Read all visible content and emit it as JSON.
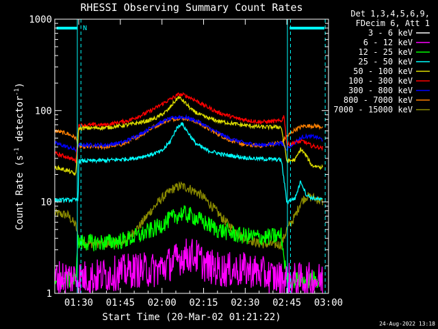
{
  "chart_data": {
    "type": "line",
    "title": "RHESSI Observing Summary Count Rates",
    "xlabel": "Start Time (20-Mar-02 01:21:22)",
    "ylabel_main": "Count Rate (s",
    "ylabel_sup1": "-1",
    "ylabel_mid": " detector",
    "ylabel_sup2": "-1",
    "ylabel_end": ")",
    "y_scale": "log",
    "ylim": [
      1,
      1000
    ],
    "xlim_minutes": [
      81.37,
      180.0
    ],
    "x_ticks": [
      {
        "t": 90,
        "label": "01:30"
      },
      {
        "t": 105,
        "label": "01:45"
      },
      {
        "t": 120,
        "label": "02:00"
      },
      {
        "t": 135,
        "label": "02:15"
      },
      {
        "t": 150,
        "label": "02:30"
      },
      {
        "t": 165,
        "label": "02:45"
      },
      {
        "t": 180,
        "label": "03:00"
      }
    ],
    "y_ticks": [
      {
        "v": 1,
        "label": "1"
      },
      {
        "v": 10,
        "label": "10"
      },
      {
        "v": 100,
        "label": "100"
      },
      {
        "v": 1000,
        "label": "1000"
      }
    ],
    "legend_header": [
      "Det 1,3,4,5,6,9,",
      "FDecim 6, Att 1"
    ],
    "legend_position": "right",
    "attenuator_flag": {
      "label": "N",
      "color": "#00ffff"
    },
    "series": [
      {
        "name": "3 - 6 keV",
        "color": "#ffffff",
        "points": []
      },
      {
        "name": "6 - 12 keV",
        "color": "#ff00ff",
        "points": [
          [
            81.4,
            1.5
          ],
          [
            95,
            1.5
          ],
          [
            110,
            1.8
          ],
          [
            118,
            1.8
          ],
          [
            124,
            2.2
          ],
          [
            128,
            2.6
          ],
          [
            132,
            2.6
          ],
          [
            136,
            2.0
          ],
          [
            142,
            1.8
          ],
          [
            152,
            1.8
          ],
          [
            160,
            1.5
          ],
          [
            166,
            1.4
          ],
          [
            178,
            1.4
          ]
        ]
      },
      {
        "name": "12 - 25 keV",
        "color": "#00ff00",
        "points": [
          [
            81.4,
            1.4
          ],
          [
            89,
            1.4
          ],
          [
            89.5,
            3.6
          ],
          [
            100,
            3.6
          ],
          [
            106,
            3.8
          ],
          [
            112,
            4.3
          ],
          [
            118,
            5.2
          ],
          [
            123,
            6.5
          ],
          [
            127,
            7.5
          ],
          [
            131,
            7.0
          ],
          [
            135,
            6.0
          ],
          [
            140,
            5.0
          ],
          [
            148,
            4.3
          ],
          [
            157,
            4.1
          ],
          [
            163,
            4.3
          ],
          [
            165,
            1.4
          ],
          [
            178,
            1.4
          ]
        ]
      },
      {
        "name": "25 - 50 keV",
        "color": "#00ffff",
        "points": [
          [
            81.4,
            10.5
          ],
          [
            89.8,
            10.5
          ],
          [
            90,
            28
          ],
          [
            100,
            28.5
          ],
          [
            110,
            30
          ],
          [
            116,
            33
          ],
          [
            120,
            36
          ],
          [
            123,
            46
          ],
          [
            125,
            62
          ],
          [
            127,
            73
          ],
          [
            129,
            60
          ],
          [
            132,
            44
          ],
          [
            136,
            37
          ],
          [
            142,
            33
          ],
          [
            152,
            30
          ],
          [
            157,
            29.5
          ],
          [
            163,
            29
          ],
          [
            165,
            10
          ],
          [
            168,
            11
          ],
          [
            170,
            17
          ],
          [
            172,
            12
          ],
          [
            174,
            11
          ],
          [
            178,
            10.5
          ]
        ]
      },
      {
        "name": "50 - 100 keV",
        "color": "#dddd00",
        "points": [
          [
            81.4,
            24
          ],
          [
            86,
            22
          ],
          [
            89,
            20
          ],
          [
            90,
            64
          ],
          [
            100,
            65
          ],
          [
            108,
            70
          ],
          [
            114,
            76
          ],
          [
            118,
            83
          ],
          [
            122,
            100
          ],
          [
            124.5,
            125
          ],
          [
            126,
            140
          ],
          [
            128,
            125
          ],
          [
            131,
            100
          ],
          [
            135,
            86
          ],
          [
            140,
            77
          ],
          [
            148,
            70
          ],
          [
            156,
            66
          ],
          [
            163,
            66
          ],
          [
            165,
            28
          ],
          [
            168,
            29
          ],
          [
            170,
            38
          ],
          [
            172,
            32
          ],
          [
            174,
            25
          ],
          [
            178,
            24
          ]
        ]
      },
      {
        "name": "100 - 300 keV",
        "color": "#ff0000",
        "points": [
          [
            81.4,
            34
          ],
          [
            86,
            31
          ],
          [
            89,
            28
          ],
          [
            90,
            69
          ],
          [
            100,
            70
          ],
          [
            108,
            78
          ],
          [
            114,
            93
          ],
          [
            118,
            108
          ],
          [
            122,
            128
          ],
          [
            126,
            150
          ],
          [
            128,
            148
          ],
          [
            131,
            135
          ],
          [
            135,
            115
          ],
          [
            140,
            96
          ],
          [
            147,
            82
          ],
          [
            155,
            75
          ],
          [
            163,
            77
          ],
          [
            164,
            88
          ],
          [
            165,
            42
          ],
          [
            168,
            45
          ],
          [
            171,
            46
          ],
          [
            174,
            41
          ],
          [
            178,
            39
          ]
        ]
      },
      {
        "name": "300 - 800 keV",
        "color": "#0000ff",
        "points": [
          [
            81.4,
            44
          ],
          [
            86,
            40
          ],
          [
            89,
            37
          ],
          [
            90,
            42
          ],
          [
            100,
            42
          ],
          [
            106,
            45
          ],
          [
            112,
            55
          ],
          [
            117,
            68
          ],
          [
            122,
            80
          ],
          [
            126,
            85
          ],
          [
            129,
            84
          ],
          [
            133,
            76
          ],
          [
            138,
            62
          ],
          [
            144,
            50
          ],
          [
            150,
            44
          ],
          [
            156,
            42
          ],
          [
            163,
            44
          ],
          [
            165,
            38
          ],
          [
            168,
            45
          ],
          [
            171,
            52
          ],
          [
            175,
            52
          ],
          [
            178,
            48
          ]
        ]
      },
      {
        "name": "800 - 7000 keV",
        "color": "#ff8000",
        "points": [
          [
            81.4,
            60
          ],
          [
            86,
            56
          ],
          [
            89,
            50
          ],
          [
            90,
            40
          ],
          [
            100,
            40
          ],
          [
            106,
            43
          ],
          [
            112,
            53
          ],
          [
            117,
            66
          ],
          [
            122,
            78
          ],
          [
            126,
            83
          ],
          [
            129,
            82
          ],
          [
            133,
            74
          ],
          [
            138,
            60
          ],
          [
            144,
            48
          ],
          [
            150,
            42
          ],
          [
            156,
            41
          ],
          [
            163,
            45
          ],
          [
            165,
            52
          ],
          [
            168,
            62
          ],
          [
            171,
            68
          ],
          [
            175,
            68
          ],
          [
            178,
            66
          ]
        ]
      },
      {
        "name": "7000 - 15000 keV",
        "color": "#8b8b00",
        "points": [
          [
            81.4,
            7.5
          ],
          [
            86,
            7.2
          ],
          [
            89,
            5.5
          ],
          [
            90,
            3.5
          ],
          [
            100,
            3.5
          ],
          [
            106,
            3.6
          ],
          [
            112,
            5.5
          ],
          [
            116,
            8
          ],
          [
            120,
            11
          ],
          [
            124,
            14
          ],
          [
            127,
            15
          ],
          [
            130,
            14
          ],
          [
            134,
            12
          ],
          [
            138,
            9
          ],
          [
            142,
            6.5
          ],
          [
            148,
            4.3
          ],
          [
            155,
            3.5
          ],
          [
            163,
            3.4
          ],
          [
            165,
            5
          ],
          [
            168,
            7
          ],
          [
            170,
            10
          ],
          [
            172,
            11.5
          ],
          [
            175,
            11
          ],
          [
            178,
            10
          ]
        ]
      }
    ]
  },
  "timestamp": "24-Aug-2022 13:18"
}
